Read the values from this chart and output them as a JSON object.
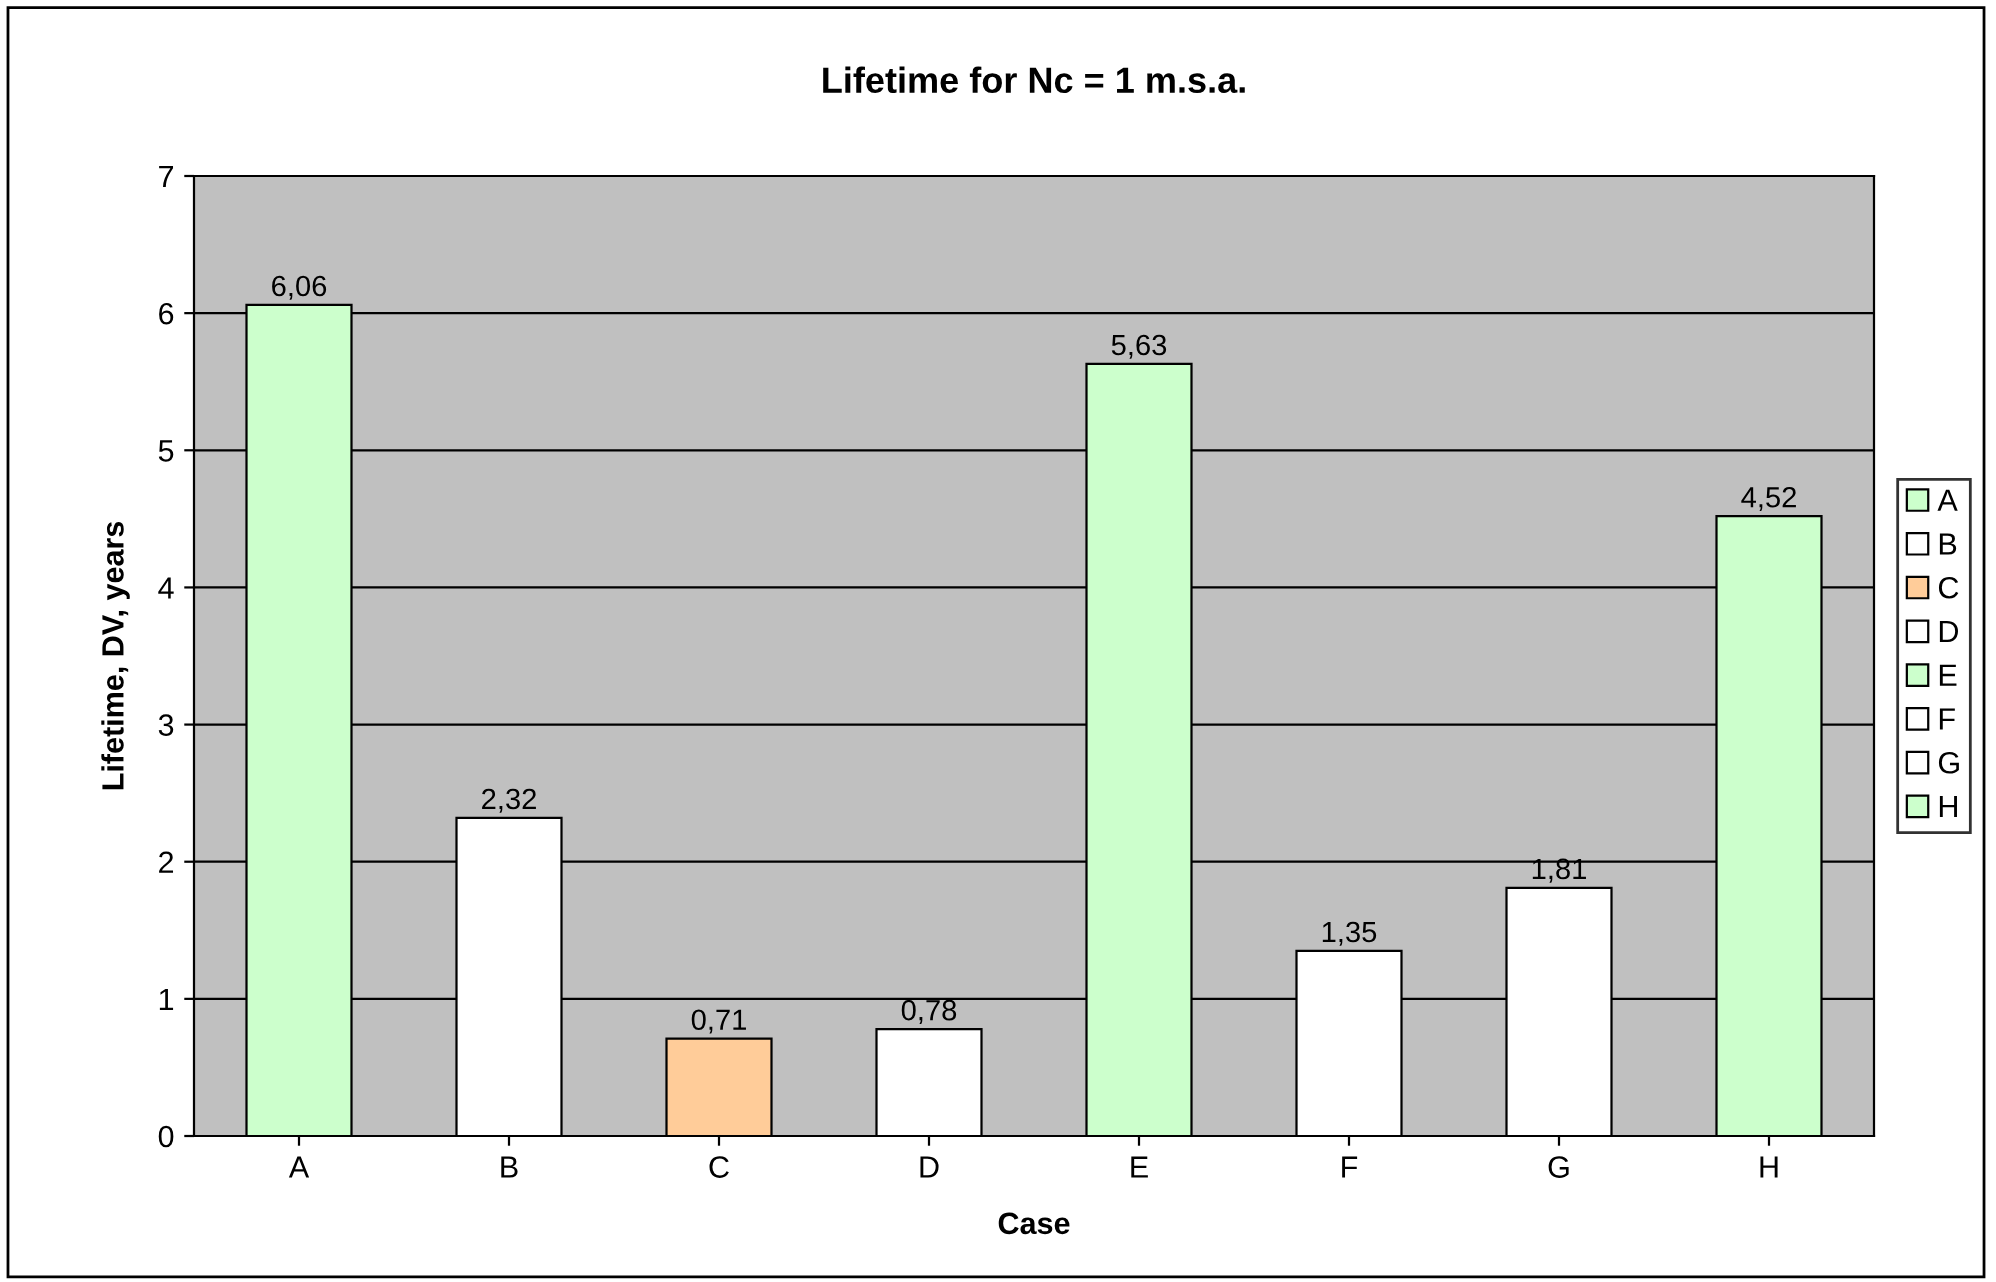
{
  "chart_data": {
    "type": "bar",
    "title": "Lifetime for Nc = 1 m.s.a.",
    "xlabel": "Case",
    "ylabel": "Lifetime, DV, years",
    "categories": [
      "A",
      "B",
      "C",
      "D",
      "E",
      "F",
      "G",
      "H"
    ],
    "series": [
      {
        "name": "A",
        "color": "#ccffcc",
        "values": [
          6.06,
          null,
          null,
          null,
          null,
          null,
          null,
          null
        ],
        "value_labels": [
          "6,06",
          null,
          null,
          null,
          null,
          null,
          null,
          null
        ]
      },
      {
        "name": "B",
        "color": "#ffffff",
        "values": [
          null,
          2.32,
          null,
          null,
          null,
          null,
          null,
          null
        ],
        "value_labels": [
          null,
          "2,32",
          null,
          null,
          null,
          null,
          null,
          null
        ]
      },
      {
        "name": "C",
        "color": "#ffcc99",
        "values": [
          null,
          null,
          0.71,
          null,
          null,
          null,
          null,
          null
        ],
        "value_labels": [
          null,
          null,
          "0,71",
          null,
          null,
          null,
          null,
          null
        ]
      },
      {
        "name": "D",
        "color": "#ffffff",
        "values": [
          null,
          null,
          null,
          0.78,
          null,
          null,
          null,
          null
        ],
        "value_labels": [
          null,
          null,
          null,
          "0,78",
          null,
          null,
          null,
          null
        ]
      },
      {
        "name": "E",
        "color": "#ccffcc",
        "values": [
          null,
          null,
          null,
          null,
          5.63,
          null,
          null,
          null
        ],
        "value_labels": [
          null,
          null,
          null,
          null,
          "5,63",
          null,
          null,
          null
        ]
      },
      {
        "name": "F",
        "color": "#ffffff",
        "values": [
          null,
          null,
          null,
          null,
          null,
          1.35,
          null,
          null
        ],
        "value_labels": [
          null,
          null,
          null,
          null,
          null,
          "1,35",
          null,
          null
        ]
      },
      {
        "name": "G",
        "color": "#ffffff",
        "values": [
          null,
          null,
          null,
          null,
          null,
          null,
          1.81,
          null
        ],
        "value_labels": [
          null,
          null,
          null,
          null,
          null,
          null,
          "1,81",
          null
        ]
      },
      {
        "name": "H",
        "color": "#ccffcc",
        "values": [
          null,
          null,
          null,
          null,
          null,
          null,
          null,
          4.52
        ],
        "value_labels": [
          null,
          null,
          null,
          null,
          null,
          null,
          null,
          "4,52"
        ]
      }
    ],
    "ylim": [
      0,
      7
    ],
    "yticks": [
      0,
      1,
      2,
      3,
      4,
      5,
      6,
      7
    ],
    "grid": "y",
    "legend": "right"
  }
}
